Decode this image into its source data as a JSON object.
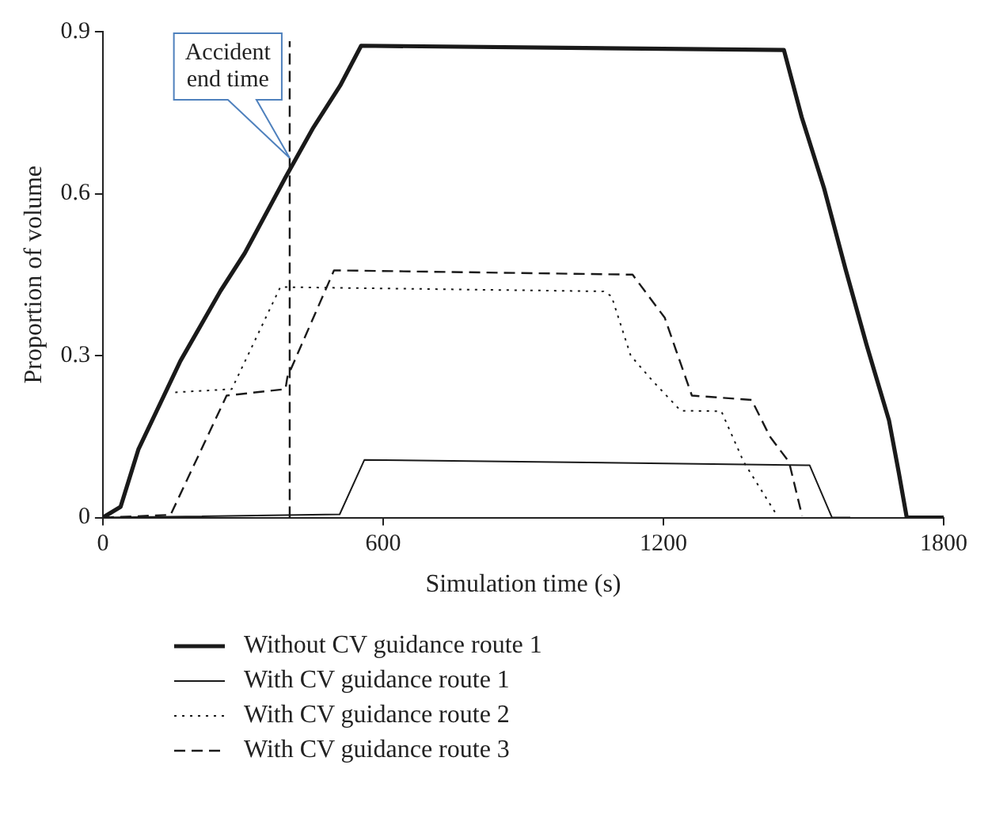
{
  "chart_data": {
    "type": "line",
    "xlabel": "Simulation time (s)",
    "ylabel": "Proportion of volume",
    "xlim": [
      0,
      1800
    ],
    "xticks": [
      0,
      600,
      1200,
      1800
    ],
    "ylim": [
      0,
      0.9
    ],
    "yticks": [
      0,
      0.3,
      0.6,
      0.9
    ],
    "grid": false,
    "legend": "bottom",
    "marker": "none",
    "series": [
      {
        "name": "Without CV guidance route 1",
        "color": "#1a1a1a",
        "line_style": "solid",
        "x": [
          0,
          38,
          76,
          166,
          252,
          304,
          391,
          449,
          508,
          553,
          1458,
          1496,
          1544,
          1590,
          1635,
          1683,
          1704,
          1721,
          1800
        ],
        "values": [
          0,
          0.02,
          0.126,
          0.29,
          0.42,
          0.49,
          0.63,
          0.72,
          0.8,
          0.874,
          0.866,
          0.742,
          0.61,
          0.46,
          0.32,
          0.18,
          0.083,
          0,
          0
        ]
      },
      {
        "name": "With CV guidance route 1",
        "color": "#1a1a1a",
        "line_style": "solid",
        "x": [
          0,
          507,
          560,
          1513,
          1561,
          1600
        ],
        "values": [
          0,
          0.006,
          0.107,
          0.097,
          0,
          0
        ]
      },
      {
        "name": "With CV guidance route 2",
        "color": "#1a1a1a",
        "line_style": "dotted",
        "x": [
          155,
          276,
          380,
          1072,
          1089,
          1130,
          1175,
          1237,
          1324,
          1372,
          1444
        ],
        "values": [
          0.232,
          0.238,
          0.427,
          0.419,
          0.41,
          0.3,
          0.255,
          0.198,
          0.197,
          0.103,
          0.003
        ]
      },
      {
        "name": "With CV guidance route 3",
        "color": "#1a1a1a",
        "line_style": "dashed",
        "x": [
          0,
          145,
          265,
          391,
          395,
          495,
          1134,
          1203,
          1227,
          1261,
          1389,
          1428,
          1469,
          1497
        ],
        "values": [
          0,
          0.005,
          0.226,
          0.238,
          0.26,
          0.458,
          0.45,
          0.37,
          0.31,
          0.226,
          0.218,
          0.15,
          0.103,
          0.003
        ]
      }
    ],
    "ref_lines": [
      {
        "axis": "x",
        "value": 400,
        "line_style": "dashed",
        "color": "#1a1a1a",
        "label": "Accident\nend time"
      }
    ]
  }
}
